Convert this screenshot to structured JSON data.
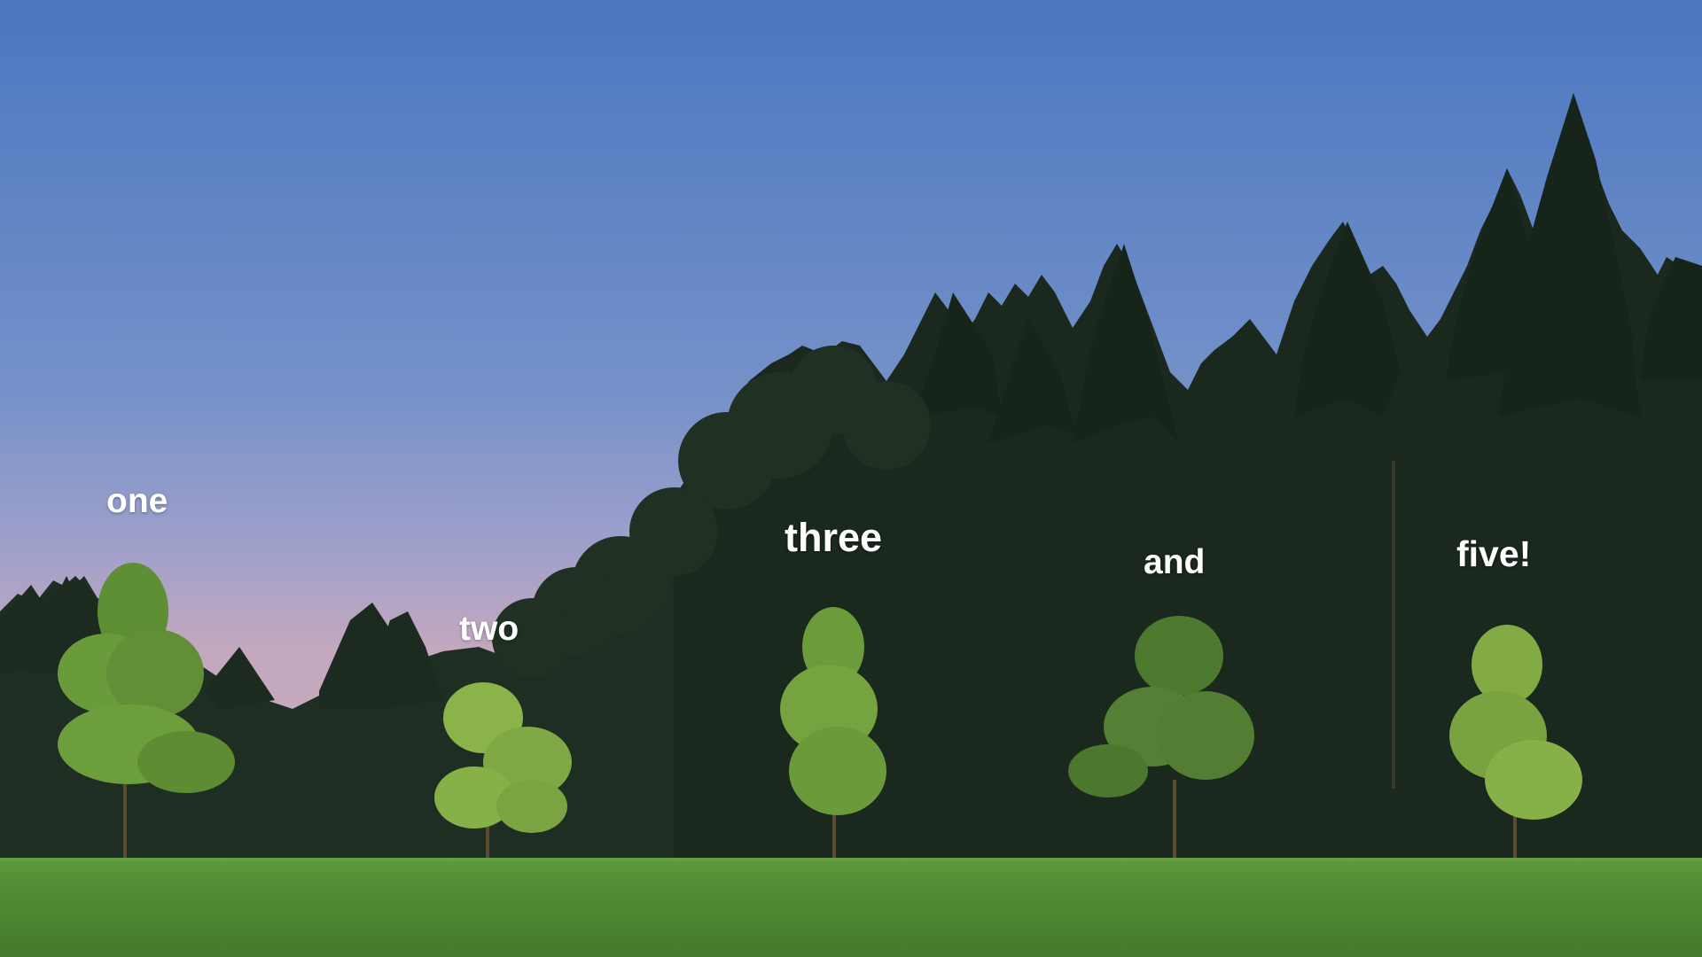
{
  "scene": {
    "description_labels": {
      "one": "one",
      "two": "two",
      "three": "three",
      "and": "and",
      "five": "five!"
    },
    "colors": {
      "sky_top": "#4e79c2",
      "sky_mid": "#7d97cc",
      "sky_horizon": "#c9a9bd",
      "forest_dark": "#1c2a1f",
      "forest_mid": "#25362a",
      "young_tree": "#6c9a3a",
      "young_tree_light": "#8cb548",
      "grass": "#4f8a34",
      "grass_light": "#62a040",
      "caption": "#ffffff"
    }
  }
}
